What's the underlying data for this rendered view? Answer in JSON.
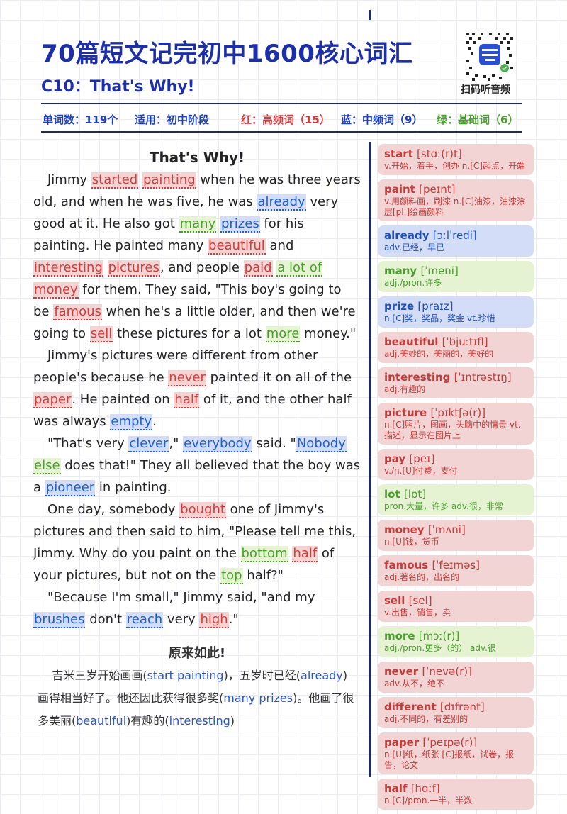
{
  "header": {
    "title": "70篇短文记完初中1600核心词汇",
    "subtitle": "C10：That's Why!",
    "qr_caption": "扫码听音频"
  },
  "stats": {
    "word_count": "单词数：119个",
    "level": "适用：初中阶段",
    "red_label": "红：高频词（15）",
    "blue_label": "蓝：中频词（9）",
    "green_label": "绿：基础词（6）"
  },
  "story": {
    "title": "That's Why!",
    "chinese_title": "原来如此!"
  },
  "colors": {
    "red": "#d23c3c",
    "blue": "#1d5fd0",
    "green": "#4a9e2c",
    "navy": "#1d2fa8"
  },
  "vocab": [
    {
      "word": "start",
      "phonetic": "[stɑː(r)t]",
      "def": "v.开始，着手，创办 n.[C]起点，开端",
      "color": "red"
    },
    {
      "word": "paint",
      "phonetic": "[peɪnt]",
      "def": "v.用颜料画，刷漆 n.[C]油漆，油漆涂层[pl.]绘画颜料",
      "color": "red"
    },
    {
      "word": "already",
      "phonetic": "[ɔːlˈredi]",
      "def": "adv.已经，早已",
      "color": "blue"
    },
    {
      "word": "many",
      "phonetic": "[ˈmeni]",
      "def": "adj./pron.许多",
      "color": "green"
    },
    {
      "word": "prize",
      "phonetic": "[praɪz]",
      "def": "n.[C]奖，奖品，奖金 vt.珍惜",
      "color": "blue"
    },
    {
      "word": "beautiful",
      "phonetic": "[ˈbjuːtɪfl]",
      "def": "adj.美妙的，美丽的，美好的",
      "color": "red"
    },
    {
      "word": "interesting",
      "phonetic": "[ˈɪntrəstɪŋ]",
      "def": "adj.有趣的",
      "color": "red"
    },
    {
      "word": "picture",
      "phonetic": "[ˈpɪktʃə(r)]",
      "def": "n.[C]照片，图画，头脑中的情景 vt.描述，显示在图片上",
      "color": "red"
    },
    {
      "word": "pay",
      "phonetic": "[peɪ]",
      "def": "v./n.[U]付费，支付",
      "color": "red"
    },
    {
      "word": "lot",
      "phonetic": "[lɒt]",
      "def": "pron.大量，许多 adv.很，非常",
      "color": "green"
    },
    {
      "word": "money",
      "phonetic": "[ˈmʌni]",
      "def": "n.[U]钱，货币",
      "color": "red"
    },
    {
      "word": "famous",
      "phonetic": "[ˈfeɪməs]",
      "def": "adj.著名的，出名的",
      "color": "red"
    },
    {
      "word": "sell",
      "phonetic": "[sel]",
      "def": "v.出售，销售，卖",
      "color": "red"
    },
    {
      "word": "more",
      "phonetic": "[mɔː(r)]",
      "def": "adj./pron.更多（的） adv.很",
      "color": "green"
    },
    {
      "word": "never",
      "phonetic": "[ˈnevə(r)]",
      "def": "adv.从不，绝不",
      "color": "red"
    },
    {
      "word": "different",
      "phonetic": "[dɪfrənt]",
      "def": "adj.不同的，有差别的",
      "color": "red"
    },
    {
      "word": "paper",
      "phonetic": "[ˈpeɪpə(r)]",
      "def": "n.[U]纸，纸张 [C]报纸，试卷，报告，论文",
      "color": "red"
    },
    {
      "word": "half",
      "phonetic": "[hɑːf]",
      "def": "n.[C]/pron.一半，半数",
      "color": "red"
    }
  ]
}
